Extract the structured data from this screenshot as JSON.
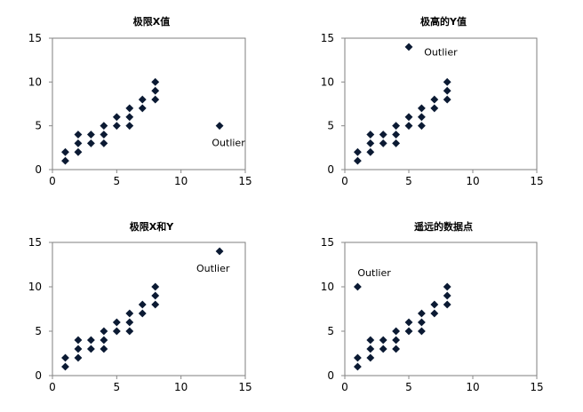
{
  "colors": {
    "marker": "#0b1a33",
    "axis": "#888888",
    "plot_border": "#7f7f7f",
    "text": "#000000"
  },
  "chart_data": [
    {
      "type": "scatter",
      "title": "极限X值",
      "xlabel": "",
      "ylabel": "",
      "xlim": [
        0,
        15
      ],
      "ylim": [
        0,
        15
      ],
      "xticks": [
        0,
        5,
        10,
        15
      ],
      "yticks": [
        0,
        5,
        10,
        15
      ],
      "grid": false,
      "marker": "diamond",
      "series": [
        {
          "points": [
            [
              1,
              1
            ],
            [
              1,
              2
            ],
            [
              2,
              2
            ],
            [
              2,
              3
            ],
            [
              2,
              4
            ],
            [
              3,
              3
            ],
            [
              3,
              4
            ],
            [
              4,
              3
            ],
            [
              4,
              4
            ],
            [
              4,
              5
            ],
            [
              5,
              5
            ],
            [
              5,
              6
            ],
            [
              6,
              5
            ],
            [
              6,
              6
            ],
            [
              6,
              7
            ],
            [
              7,
              7
            ],
            [
              7,
              8
            ],
            [
              8,
              8
            ],
            [
              8,
              9
            ],
            [
              8,
              10
            ],
            [
              13,
              5
            ]
          ]
        }
      ],
      "annotations": [
        {
          "text": "Outlier",
          "x": 12.4,
          "y": 2.7
        }
      ]
    },
    {
      "type": "scatter",
      "title": "极高的Y值",
      "xlabel": "",
      "ylabel": "",
      "xlim": [
        0,
        15
      ],
      "ylim": [
        0,
        15
      ],
      "xticks": [
        0,
        5,
        10,
        15
      ],
      "yticks": [
        0,
        5,
        10,
        15
      ],
      "grid": false,
      "marker": "diamond",
      "series": [
        {
          "points": [
            [
              1,
              1
            ],
            [
              1,
              2
            ],
            [
              2,
              2
            ],
            [
              2,
              3
            ],
            [
              2,
              4
            ],
            [
              3,
              3
            ],
            [
              3,
              4
            ],
            [
              4,
              3
            ],
            [
              4,
              4
            ],
            [
              4,
              5
            ],
            [
              5,
              5
            ],
            [
              5,
              6
            ],
            [
              6,
              5
            ],
            [
              6,
              6
            ],
            [
              6,
              7
            ],
            [
              7,
              7
            ],
            [
              7,
              8
            ],
            [
              8,
              8
            ],
            [
              8,
              9
            ],
            [
              8,
              10
            ],
            [
              5,
              14
            ]
          ]
        }
      ],
      "annotations": [
        {
          "text": "Outlier",
          "x": 6.2,
          "y": 13.0
        }
      ]
    },
    {
      "type": "scatter",
      "title": "极限X和Y",
      "xlabel": "",
      "ylabel": "",
      "xlim": [
        0,
        15
      ],
      "ylim": [
        0,
        15
      ],
      "xticks": [
        0,
        5,
        10,
        15
      ],
      "yticks": [
        0,
        5,
        10,
        15
      ],
      "grid": false,
      "marker": "diamond",
      "series": [
        {
          "points": [
            [
              1,
              1
            ],
            [
              1,
              2
            ],
            [
              2,
              2
            ],
            [
              2,
              3
            ],
            [
              2,
              4
            ],
            [
              3,
              3
            ],
            [
              3,
              4
            ],
            [
              4,
              3
            ],
            [
              4,
              4
            ],
            [
              4,
              5
            ],
            [
              5,
              5
            ],
            [
              5,
              6
            ],
            [
              6,
              5
            ],
            [
              6,
              6
            ],
            [
              6,
              7
            ],
            [
              7,
              7
            ],
            [
              7,
              8
            ],
            [
              8,
              8
            ],
            [
              8,
              9
            ],
            [
              8,
              10
            ],
            [
              13,
              14
            ]
          ]
        }
      ],
      "annotations": [
        {
          "text": "Outlier",
          "x": 11.2,
          "y": 11.7
        }
      ]
    },
    {
      "type": "scatter",
      "title": "遥远的数据点",
      "xlabel": "",
      "ylabel": "",
      "xlim": [
        0,
        15
      ],
      "ylim": [
        0,
        15
      ],
      "xticks": [
        0,
        5,
        10,
        15
      ],
      "yticks": [
        0,
        5,
        10,
        15
      ],
      "grid": false,
      "marker": "diamond",
      "series": [
        {
          "points": [
            [
              1,
              1
            ],
            [
              1,
              2
            ],
            [
              2,
              2
            ],
            [
              2,
              3
            ],
            [
              2,
              4
            ],
            [
              3,
              3
            ],
            [
              3,
              4
            ],
            [
              4,
              3
            ],
            [
              4,
              4
            ],
            [
              4,
              5
            ],
            [
              5,
              5
            ],
            [
              5,
              6
            ],
            [
              6,
              5
            ],
            [
              6,
              6
            ],
            [
              6,
              7
            ],
            [
              7,
              7
            ],
            [
              7,
              8
            ],
            [
              8,
              8
            ],
            [
              8,
              9
            ],
            [
              8,
              10
            ],
            [
              1,
              10
            ]
          ]
        }
      ],
      "annotations": [
        {
          "text": "Outlier",
          "x": 1.0,
          "y": 11.2
        }
      ]
    }
  ]
}
